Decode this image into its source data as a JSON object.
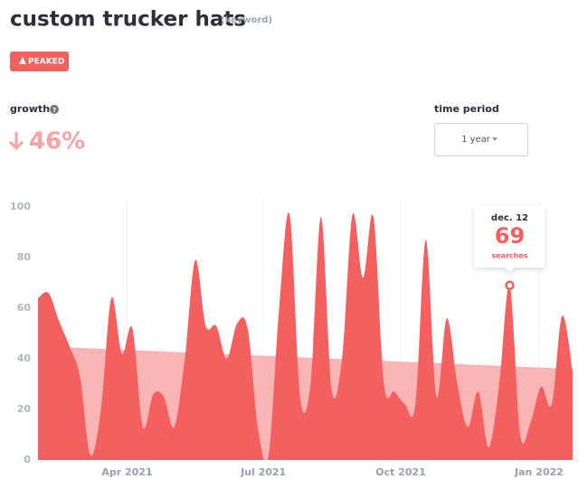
{
  "header": {
    "title": "custom trucker hats",
    "tag": "(keyword)",
    "badge": "PEAKED"
  },
  "growth": {
    "label": "growth",
    "value": "46%"
  },
  "period": {
    "label": "time period",
    "value": "1 year"
  },
  "chart_data": {
    "type": "area",
    "x": [
      0,
      1,
      2,
      3,
      4,
      5,
      6,
      7,
      8,
      9,
      10,
      11,
      12,
      13,
      14,
      15,
      16,
      17,
      18,
      19,
      20,
      21,
      22,
      23,
      24,
      25,
      26,
      27,
      28,
      29,
      30,
      31,
      32,
      33,
      34,
      35,
      36,
      37,
      38,
      39,
      40,
      41,
      42,
      43,
      44,
      45,
      46,
      47,
      48,
      49,
      50,
      51
    ],
    "values": [
      64,
      66,
      55,
      45,
      33,
      2,
      20,
      64,
      42,
      52,
      13,
      26,
      25,
      13,
      40,
      79,
      53,
      53,
      40,
      54,
      52,
      12,
      2,
      60,
      97,
      25,
      30,
      96,
      28,
      40,
      97,
      72,
      96,
      30,
      27,
      22,
      22,
      87,
      25,
      56,
      30,
      13,
      27,
      5,
      30,
      69,
      10,
      15,
      29,
      22,
      57,
      35
    ],
    "color": "#f45f5f",
    "trend": {
      "x": [
        0,
        51
      ],
      "values": [
        45,
        36
      ],
      "color": "#f9b5b5"
    },
    "xlim": [
      0,
      51
    ],
    "ylim": [
      0,
      100
    ],
    "yticks": [
      0,
      20,
      40,
      60,
      80,
      100
    ],
    "xticks": [
      {
        "value": 8.5,
        "label": "Apr 2021"
      },
      {
        "value": 21.5,
        "label": "Jul 2021"
      },
      {
        "value": 34.6,
        "label": "Oct 2021"
      },
      {
        "value": 47.8,
        "label": "Jan 2022"
      }
    ],
    "tooltip": {
      "index": 45,
      "date": "dec. 12",
      "unit": "searches"
    }
  }
}
